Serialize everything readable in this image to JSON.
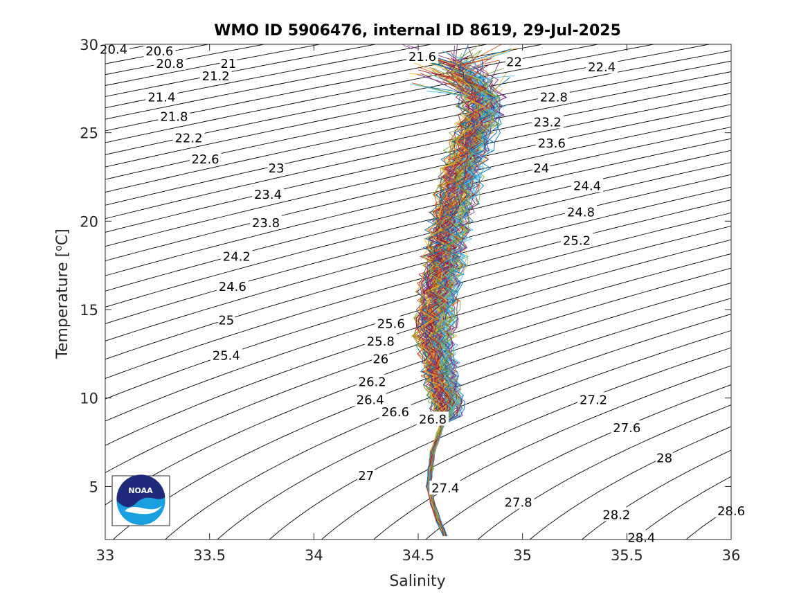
{
  "chart_data": {
    "type": "line",
    "title": "WMO ID 5906476, internal ID 8619, 29-Jul-2025",
    "xlabel": "Salinity",
    "ylabel": "Temperature [",
    "ylabel_unit_sup": "o",
    "ylabel_unit": "C]",
    "xlim": [
      33,
      36
    ],
    "ylim": [
      2,
      30
    ],
    "xticks": [
      33,
      33.5,
      34,
      34.5,
      35,
      35.5,
      36
    ],
    "xtick_labels": [
      "33",
      "33.5",
      "34",
      "34.5",
      "35",
      "35.5",
      "36"
    ],
    "yticks": [
      5,
      10,
      15,
      20,
      25,
      30
    ],
    "ytick_labels": [
      "5",
      "10",
      "15",
      "20",
      "25",
      "30"
    ],
    "isopycnal_interval": 0.2,
    "isopycnal_labels": [
      {
        "text": "20.4",
        "s": 33.04,
        "t": 29.7
      },
      {
        "text": "20.6",
        "s": 33.26,
        "t": 29.6
      },
      {
        "text": "20.8",
        "s": 33.31,
        "t": 28.9
      },
      {
        "text": "21",
        "s": 33.59,
        "t": 28.9
      },
      {
        "text": "21.2",
        "s": 33.53,
        "t": 28.2
      },
      {
        "text": "21.6",
        "s": 34.52,
        "t": 29.3
      },
      {
        "text": "22",
        "s": 34.96,
        "t": 29.0
      },
      {
        "text": "22.4",
        "s": 35.38,
        "t": 28.7
      },
      {
        "text": "21.4",
        "s": 33.27,
        "t": 27.0
      },
      {
        "text": "22.8",
        "s": 35.15,
        "t": 27.0
      },
      {
        "text": "21.8",
        "s": 33.33,
        "t": 25.9
      },
      {
        "text": "23.2",
        "s": 35.12,
        "t": 25.6
      },
      {
        "text": "22.2",
        "s": 33.4,
        "t": 24.7
      },
      {
        "text": "23.6",
        "s": 35.14,
        "t": 24.4
      },
      {
        "text": "22.6",
        "s": 33.48,
        "t": 23.5
      },
      {
        "text": "23",
        "s": 33.82,
        "t": 23.0
      },
      {
        "text": "24",
        "s": 35.09,
        "t": 23.0
      },
      {
        "text": "24.4",
        "s": 35.31,
        "t": 22.0
      },
      {
        "text": "23.4",
        "s": 33.78,
        "t": 21.5
      },
      {
        "text": "24.8",
        "s": 35.28,
        "t": 20.5
      },
      {
        "text": "23.8",
        "s": 33.77,
        "t": 19.9
      },
      {
        "text": "25.2",
        "s": 35.26,
        "t": 18.9
      },
      {
        "text": "24.2",
        "s": 33.63,
        "t": 18.0
      },
      {
        "text": "24.6",
        "s": 33.61,
        "t": 16.3
      },
      {
        "text": "25.6",
        "s": 34.37,
        "t": 14.2
      },
      {
        "text": "25",
        "s": 33.58,
        "t": 14.4
      },
      {
        "text": "25.8",
        "s": 34.32,
        "t": 13.2
      },
      {
        "text": "26",
        "s": 34.32,
        "t": 12.2
      },
      {
        "text": "25.4",
        "s": 33.58,
        "t": 12.4
      },
      {
        "text": "26.2",
        "s": 34.28,
        "t": 10.9
      },
      {
        "text": "27.2",
        "s": 35.34,
        "t": 9.9
      },
      {
        "text": "26.4",
        "s": 34.27,
        "t": 9.9
      },
      {
        "text": "26.6",
        "s": 34.39,
        "t": 9.2
      },
      {
        "text": "26.8",
        "s": 34.57,
        "t": 8.8
      },
      {
        "text": "27.6",
        "s": 35.5,
        "t": 8.3
      },
      {
        "text": "28",
        "s": 35.68,
        "t": 6.6
      },
      {
        "text": "27",
        "s": 34.25,
        "t": 5.6
      },
      {
        "text": "27.4",
        "s": 34.63,
        "t": 4.9
      },
      {
        "text": "27.8",
        "s": 34.98,
        "t": 4.1
      },
      {
        "text": "28.6",
        "s": 36.0,
        "t": 3.6
      },
      {
        "text": "28.2",
        "s": 35.45,
        "t": 3.4
      },
      {
        "text": "28.4",
        "s": 35.57,
        "t": 2.1
      }
    ],
    "profile_colors": [
      "#0072bd",
      "#d95319",
      "#edb120",
      "#7e2f8e",
      "#77ac30",
      "#4dbeee",
      "#a2142f"
    ],
    "profiles_mean": [
      {
        "t": 2.2,
        "s": 34.63
      },
      {
        "t": 3.0,
        "s": 34.6
      },
      {
        "t": 4.0,
        "s": 34.57
      },
      {
        "t": 5.0,
        "s": 34.55
      },
      {
        "t": 6.0,
        "s": 34.56
      },
      {
        "t": 7.0,
        "s": 34.57
      },
      {
        "t": 8.0,
        "s": 34.6
      },
      {
        "t": 9.0,
        "s": 34.63
      },
      {
        "t": 9.8,
        "s": 34.64
      },
      {
        "t": 10.5,
        "s": 34.62
      },
      {
        "t": 11.0,
        "s": 34.61
      },
      {
        "t": 11.5,
        "s": 34.6
      },
      {
        "t": 12.0,
        "s": 34.6
      },
      {
        "t": 13.0,
        "s": 34.58
      },
      {
        "t": 14.0,
        "s": 34.58
      },
      {
        "t": 15.0,
        "s": 34.59
      },
      {
        "t": 16.0,
        "s": 34.6
      },
      {
        "t": 17.0,
        "s": 34.61
      },
      {
        "t": 18.0,
        "s": 34.63
      },
      {
        "t": 19.0,
        "s": 34.64
      },
      {
        "t": 20.0,
        "s": 34.65
      },
      {
        "t": 21.0,
        "s": 34.67
      },
      {
        "t": 22.0,
        "s": 34.69
      },
      {
        "t": 23.0,
        "s": 34.71
      },
      {
        "t": 24.0,
        "s": 34.74
      },
      {
        "t": 25.0,
        "s": 34.77
      },
      {
        "t": 26.0,
        "s": 34.8
      },
      {
        "t": 27.0,
        "s": 34.8
      },
      {
        "t": 28.0,
        "s": 34.75
      },
      {
        "t": 28.8,
        "s": 34.7
      }
    ],
    "profile_count": 110
  },
  "logo": {
    "text": "NOAA",
    "icon": "noaa-logo"
  }
}
